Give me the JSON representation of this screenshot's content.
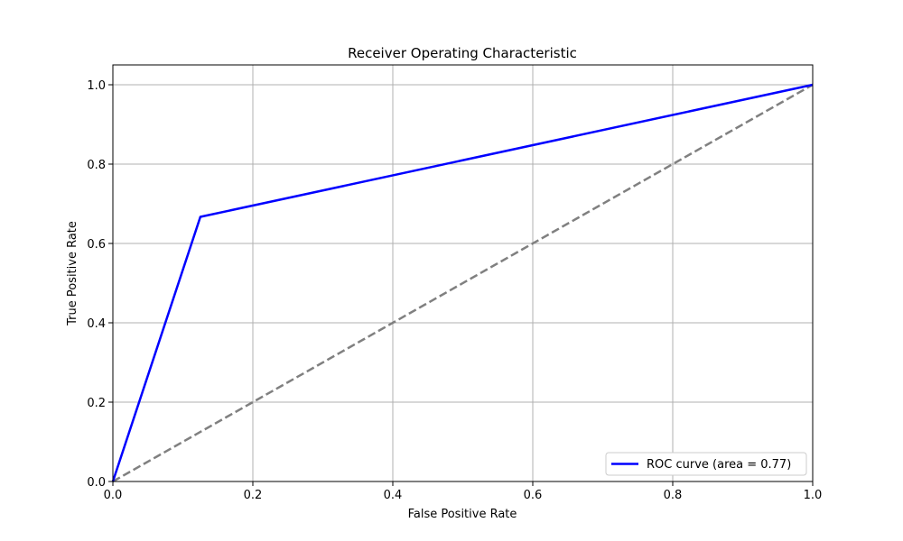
{
  "chart_data": {
    "type": "line",
    "title": "Receiver Operating Characteristic",
    "xlabel": "False Positive Rate",
    "ylabel": "True Positive Rate",
    "xlim": [
      0.0,
      1.0
    ],
    "ylim": [
      0.0,
      1.05
    ],
    "x_ticks": [
      0.0,
      0.2,
      0.4,
      0.6,
      0.8,
      1.0
    ],
    "y_ticks": [
      0.0,
      0.2,
      0.4,
      0.6,
      0.8,
      1.0
    ],
    "x_tick_labels": [
      "0.0",
      "0.2",
      "0.4",
      "0.6",
      "0.8",
      "1.0"
    ],
    "y_tick_labels": [
      "0.0",
      "0.2",
      "0.4",
      "0.6",
      "0.8",
      "1.0"
    ],
    "grid": true,
    "legend_position": "lower-right",
    "series": [
      {
        "name": "ROC curve (area = 0.77)",
        "color": "#0000ff",
        "style": "solid",
        "x": [
          0.0,
          0.125,
          1.0
        ],
        "y": [
          0.0,
          0.667,
          1.0
        ]
      },
      {
        "color": "#808080",
        "style": "dashed",
        "x": [
          0.0,
          1.0
        ],
        "y": [
          0.0,
          1.0
        ]
      }
    ]
  }
}
